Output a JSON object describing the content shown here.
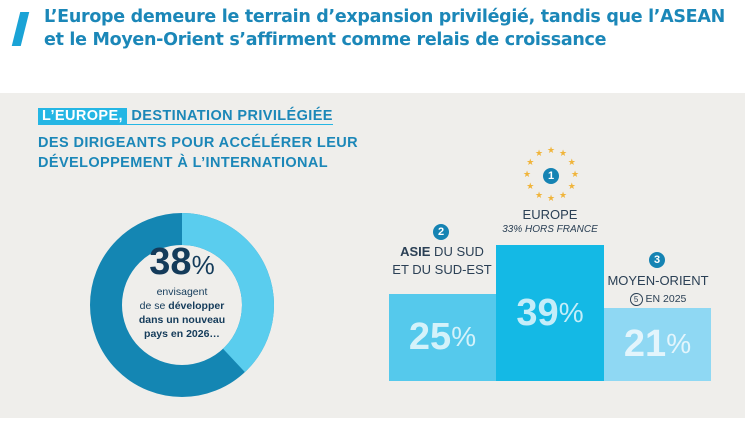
{
  "header": {
    "title": "L’Europe demeure le terrain d’expansion privilégié, tandis que l’ASEAN et le Moyen-Orient s’affirment comme relais de croissance"
  },
  "infographic": {
    "title_highlight": "L’EUROPE,",
    "title_line1": "DESTINATION PRIVILÉGIÉE",
    "title_line2": "DES DIRIGEANTS POUR ACCÉLÉRER LEUR",
    "title_line3": "DÉVELOPPEMENT À L’INTERNATIONAL",
    "donut": {
      "value": 38,
      "value_text": "38",
      "percent_sign": "%",
      "line1": "envisagent",
      "line2_normal": "de se ",
      "line2_bold": "développer",
      "line3": "dans un nouveau",
      "line4": "pays en 2026…",
      "colors": {
        "value": "#5acdee",
        "rest": "#1486b3"
      }
    },
    "podium": [
      {
        "rank": "2",
        "name_bold": "ASIE",
        "name_rest": " DU SUD",
        "name_line2": "ET DU SUD-EST",
        "value": 25,
        "value_text": "25",
        "color": "#55c9ec"
      },
      {
        "rank": "1",
        "name": "EUROPE",
        "subtitle": "33% HORS FRANCE",
        "value": 39,
        "value_text": "39",
        "color": "#14b9e5"
      },
      {
        "rank": "3",
        "name": "MOYEN-ORIENT",
        "previous_rank": "5",
        "previous_note": "EN 2025",
        "value": 21,
        "value_text": "21",
        "color": "#8fd8f3"
      }
    ],
    "percent_sign": "%"
  }
}
